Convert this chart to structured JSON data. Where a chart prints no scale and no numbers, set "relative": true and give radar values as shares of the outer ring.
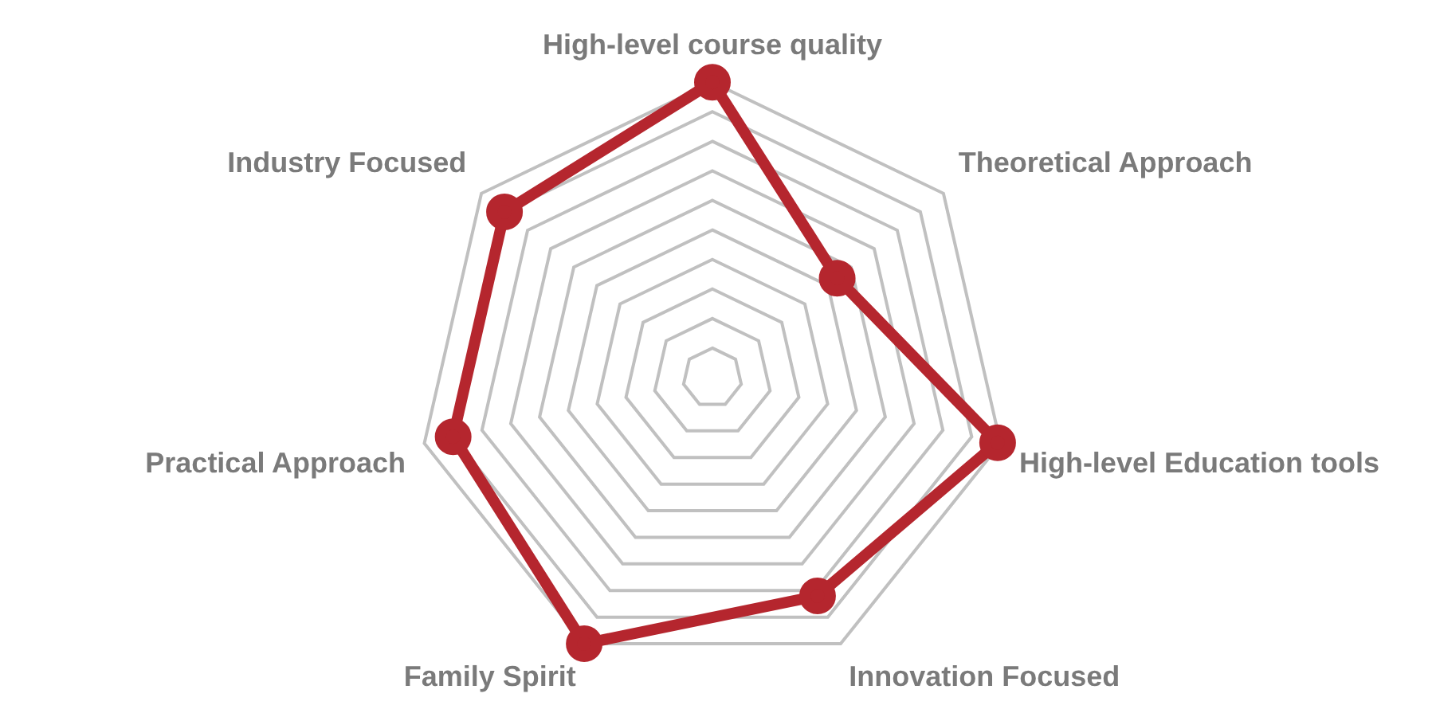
{
  "chart_data": {
    "type": "radar",
    "relative": true,
    "categories": [
      "High-level course quality",
      "Theoretical Approach",
      "High-level Education tools",
      "Innovation Focused",
      "Family Spirit",
      "Practical Approach",
      "Industry Focused"
    ],
    "series": [
      {
        "color": "#b5262e",
        "values": [
          1.0,
          0.54,
          0.99,
          0.82,
          1.0,
          0.9,
          0.9
        ]
      }
    ],
    "marker": "circle",
    "legend": false
  }
}
